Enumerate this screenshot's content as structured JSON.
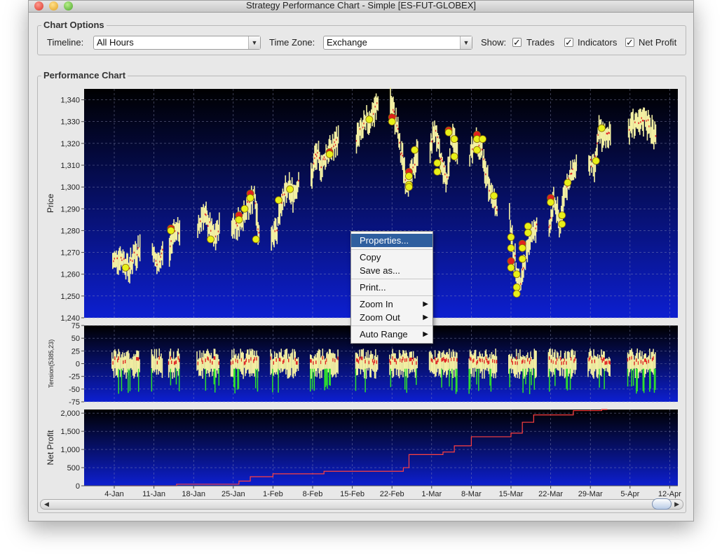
{
  "window": {
    "title": "Strategy Performance Chart -  Simple [ES-FUT-GLOBEX]"
  },
  "options": {
    "legend": "Chart Options",
    "timeline": {
      "label": "Timeline:",
      "value": "All Hours"
    },
    "timezone": {
      "label": "Time Zone:",
      "value": "Exchange"
    },
    "show": {
      "label": "Show:",
      "items": [
        "Trades",
        "Indicators",
        "Net Profit"
      ]
    }
  },
  "chart_panel": {
    "legend": "Performance Chart"
  },
  "context_menu": {
    "items": [
      "Properties...",
      "Copy",
      "Save as...",
      "Print...",
      "Zoom In",
      "Zoom Out",
      "Auto Range"
    ]
  },
  "colors": {
    "plot_top": "#000000",
    "plot_bottom": "#0d1fd0",
    "candle": "#f3f0a2",
    "trade_green": "#e8f018",
    "trade_red": "#e02020",
    "indicator_green": "#2ee02e",
    "equity": "#ff4040"
  },
  "icons": {
    "scroll_left": "left-arrow-icon",
    "scroll_right": "right-arrow-icon",
    "submenu": "right-arrow-icon"
  },
  "chart_data": [
    {
      "type": "candlestick",
      "ylabel": "Price",
      "ylim": [
        1240,
        1345
      ],
      "y_ticks": [
        "1,240",
        "1,250",
        "1,260",
        "1,270",
        "1,280",
        "1,290",
        "1,300",
        "1,310",
        "1,320",
        "1,330",
        "1,340"
      ],
      "x_ticks": [
        "4-Jan",
        "11-Jan",
        "18-Jan",
        "25-Jan",
        "1-Feb",
        "8-Feb",
        "15-Feb",
        "22-Feb",
        "1-Mar",
        "8-Mar",
        "15-Mar",
        "22-Mar",
        "29-Mar",
        "5-Apr",
        "12-Apr"
      ],
      "daily_close": [
        {
          "d": "2010-01-04",
          "c": 1268
        },
        {
          "d": "2010-01-05",
          "c": 1266
        },
        {
          "d": "2010-01-06",
          "c": 1263
        },
        {
          "d": "2010-01-07",
          "c": 1269
        },
        {
          "d": "2010-01-08",
          "c": 1272
        },
        {
          "d": "2010-01-11",
          "c": 1264
        },
        {
          "d": "2010-01-12",
          "c": 1270
        },
        {
          "d": "2010-01-14",
          "c": 1281
        },
        {
          "d": "2010-01-15",
          "c": 1279
        },
        {
          "d": "2010-01-19",
          "c": 1288
        },
        {
          "d": "2010-01-20",
          "c": 1283
        },
        {
          "d": "2010-01-21",
          "c": 1276
        },
        {
          "d": "2010-01-22",
          "c": 1282
        },
        {
          "d": "2010-01-25",
          "c": 1283
        },
        {
          "d": "2010-01-26",
          "c": 1286
        },
        {
          "d": "2010-01-27",
          "c": 1291
        },
        {
          "d": "2010-01-28",
          "c": 1296
        },
        {
          "d": "2010-01-29",
          "c": 1277
        },
        {
          "d": "2010-02-01",
          "c": 1281
        },
        {
          "d": "2010-02-02",
          "c": 1294
        },
        {
          "d": "2010-02-03",
          "c": 1299
        },
        {
          "d": "2010-02-04",
          "c": 1297
        },
        {
          "d": "2010-02-05",
          "c": 1303
        },
        {
          "d": "2010-02-08",
          "c": 1314
        },
        {
          "d": "2010-02-09",
          "c": 1310
        },
        {
          "d": "2010-02-10",
          "c": 1316
        },
        {
          "d": "2010-02-11",
          "c": 1318
        },
        {
          "d": "2010-02-12",
          "c": 1322
        },
        {
          "d": "2010-02-16",
          "c": 1326
        },
        {
          "d": "2010-02-17",
          "c": 1330
        },
        {
          "d": "2010-02-18",
          "c": 1333
        },
        {
          "d": "2010-02-19",
          "c": 1339
        },
        {
          "d": "2010-02-22",
          "c": 1331
        },
        {
          "d": "2010-02-23",
          "c": 1315
        },
        {
          "d": "2010-02-24",
          "c": 1302
        },
        {
          "d": "2010-02-25",
          "c": 1307
        },
        {
          "d": "2010-02-26",
          "c": 1317
        },
        {
          "d": "2010-03-01",
          "c": 1326
        },
        {
          "d": "2010-03-02",
          "c": 1312
        },
        {
          "d": "2010-03-03",
          "c": 1304
        },
        {
          "d": "2010-03-04",
          "c": 1324
        },
        {
          "d": "2010-03-05",
          "c": 1314
        },
        {
          "d": "2010-03-08",
          "c": 1321
        },
        {
          "d": "2010-03-09",
          "c": 1318
        },
        {
          "d": "2010-03-10",
          "c": 1305
        },
        {
          "d": "2010-03-11",
          "c": 1296
        },
        {
          "d": "2010-03-12",
          "c": 1288
        },
        {
          "d": "2010-03-15",
          "c": 1266
        },
        {
          "d": "2010-03-16",
          "c": 1255
        },
        {
          "d": "2010-03-17",
          "c": 1268
        },
        {
          "d": "2010-03-18",
          "c": 1279
        },
        {
          "d": "2010-03-19",
          "c": 1281
        },
        {
          "d": "2010-03-22",
          "c": 1293
        },
        {
          "d": "2010-03-23",
          "c": 1283
        },
        {
          "d": "2010-03-24",
          "c": 1300
        },
        {
          "d": "2010-03-25",
          "c": 1305
        },
        {
          "d": "2010-03-26",
          "c": 1311
        },
        {
          "d": "2010-03-29",
          "c": 1309
        },
        {
          "d": "2010-03-30",
          "c": 1325
        },
        {
          "d": "2010-03-31",
          "c": 1322
        },
        {
          "d": "2010-04-01",
          "c": 1326
        },
        {
          "d": "2010-04-05",
          "c": 1330
        },
        {
          "d": "2010-04-06",
          "c": 1328
        },
        {
          "d": "2010-04-07",
          "c": 1332
        },
        {
          "d": "2010-04-08",
          "c": 1326
        },
        {
          "d": "2010-04-09",
          "c": 1324
        }
      ],
      "trades": [
        {
          "d": "2010-01-06",
          "p": 1263,
          "side": "buy"
        },
        {
          "d": "2010-01-14",
          "p": 1281,
          "side": "sell"
        },
        {
          "d": "2010-01-14",
          "p": 1280,
          "side": "buy"
        },
        {
          "d": "2010-01-21",
          "p": 1276,
          "side": "buy"
        },
        {
          "d": "2010-01-26",
          "p": 1287,
          "side": "sell"
        },
        {
          "d": "2010-01-26",
          "p": 1285,
          "side": "buy"
        },
        {
          "d": "2010-01-27",
          "p": 1290,
          "side": "buy"
        },
        {
          "d": "2010-01-28",
          "p": 1297,
          "side": "sell"
        },
        {
          "d": "2010-01-28",
          "p": 1295,
          "side": "buy"
        },
        {
          "d": "2010-01-29",
          "p": 1276,
          "side": "buy"
        },
        {
          "d": "2010-02-02",
          "p": 1294,
          "side": "buy"
        },
        {
          "d": "2010-02-04",
          "p": 1299,
          "side": "buy"
        },
        {
          "d": "2010-02-11",
          "p": 1316,
          "side": "sell"
        },
        {
          "d": "2010-02-11",
          "p": 1315,
          "side": "buy"
        },
        {
          "d": "2010-02-18",
          "p": 1331,
          "side": "buy"
        },
        {
          "d": "2010-02-22",
          "p": 1332,
          "side": "sell"
        },
        {
          "d": "2010-02-22",
          "p": 1330,
          "side": "buy"
        },
        {
          "d": "2010-02-25",
          "p": 1307,
          "side": "sell"
        },
        {
          "d": "2010-02-25",
          "p": 1305,
          "side": "buy"
        },
        {
          "d": "2010-02-25",
          "p": 1301,
          "side": "buy"
        },
        {
          "d": "2010-02-25",
          "p": 1300,
          "side": "buy"
        },
        {
          "d": "2010-02-26",
          "p": 1317,
          "side": "buy"
        },
        {
          "d": "2010-03-02",
          "p": 1311,
          "side": "buy"
        },
        {
          "d": "2010-03-02",
          "p": 1307,
          "side": "buy"
        },
        {
          "d": "2010-03-04",
          "p": 1326,
          "side": "sell"
        },
        {
          "d": "2010-03-04",
          "p": 1325,
          "side": "buy"
        },
        {
          "d": "2010-03-05",
          "p": 1322,
          "side": "buy"
        },
        {
          "d": "2010-03-05",
          "p": 1314,
          "side": "buy"
        },
        {
          "d": "2010-03-09",
          "p": 1324,
          "side": "sell"
        },
        {
          "d": "2010-03-09",
          "p": 1322,
          "side": "buy"
        },
        {
          "d": "2010-03-09",
          "p": 1317,
          "side": "buy"
        },
        {
          "d": "2010-03-10",
          "p": 1322,
          "side": "buy"
        },
        {
          "d": "2010-03-12",
          "p": 1296,
          "side": "buy"
        },
        {
          "d": "2010-03-15",
          "p": 1277,
          "side": "buy"
        },
        {
          "d": "2010-03-15",
          "p": 1272,
          "side": "buy"
        },
        {
          "d": "2010-03-15",
          "p": 1266,
          "side": "sell"
        },
        {
          "d": "2010-03-15",
          "p": 1263,
          "side": "buy"
        },
        {
          "d": "2010-03-16",
          "p": 1260,
          "side": "buy"
        },
        {
          "d": "2010-03-16",
          "p": 1254,
          "side": "buy"
        },
        {
          "d": "2010-03-16",
          "p": 1251,
          "side": "buy"
        },
        {
          "d": "2010-03-17",
          "p": 1274,
          "side": "sell"
        },
        {
          "d": "2010-03-17",
          "p": 1272,
          "side": "buy"
        },
        {
          "d": "2010-03-17",
          "p": 1267,
          "side": "buy"
        },
        {
          "d": "2010-03-18",
          "p": 1282,
          "side": "buy"
        },
        {
          "d": "2010-03-18",
          "p": 1279,
          "side": "buy"
        },
        {
          "d": "2010-03-22",
          "p": 1295,
          "side": "sell"
        },
        {
          "d": "2010-03-22",
          "p": 1293,
          "side": "buy"
        },
        {
          "d": "2010-03-24",
          "p": 1287,
          "side": "buy"
        },
        {
          "d": "2010-03-24",
          "p": 1283,
          "side": "buy"
        },
        {
          "d": "2010-03-25",
          "p": 1302,
          "side": "buy"
        },
        {
          "d": "2010-03-30",
          "p": 1312,
          "side": "buy"
        },
        {
          "d": "2010-03-31",
          "p": 1327,
          "side": "buy"
        }
      ]
    },
    {
      "type": "bar",
      "ylabel": "Tension(5385,23)",
      "ylim": [
        -75,
        75
      ],
      "y_ticks": [
        "75",
        "50",
        "25",
        "0",
        "-25",
        "-50",
        "-75"
      ],
      "note": "per-bar indicator; envelope follows the daily sessions"
    },
    {
      "type": "line",
      "ylabel": "Net Profit",
      "ylim": [
        0,
        2100
      ],
      "y_ticks": [
        "2,000",
        "1,500",
        "1,000",
        "500",
        "0"
      ],
      "x": [
        "2010-01-05",
        "2010-01-15",
        "2010-01-26",
        "2010-01-28",
        "2010-02-01",
        "2010-02-10",
        "2010-02-24",
        "2010-02-25",
        "2010-03-03",
        "2010-03-05",
        "2010-03-08",
        "2010-03-15",
        "2010-03-17",
        "2010-03-19",
        "2010-03-26",
        "2010-03-31"
      ],
      "y": [
        0,
        45,
        130,
        250,
        330,
        400,
        500,
        860,
        930,
        1100,
        1350,
        1450,
        1750,
        1950,
        2070,
        2100
      ]
    }
  ]
}
